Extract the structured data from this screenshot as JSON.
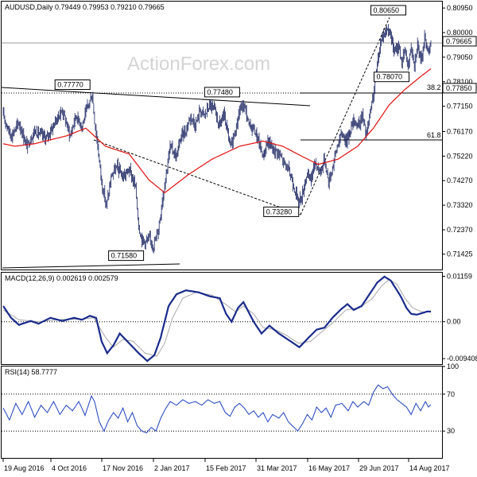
{
  "chart_data": [
    {
      "type": "candlestick",
      "symbol": "AUDUSD",
      "timeframe": "Daily",
      "header": "AUDUSD,Daily  0.79449 0.79953 0.79210 0.79665",
      "watermark": "ActionForex.com",
      "ylim": [
        0.708,
        0.812
      ],
      "y_ticks": [
        "0.80950",
        "0.80000",
        "0.79050",
        "0.78100",
        "0.77150",
        "0.76170",
        "0.75220",
        "0.74270",
        "0.73320",
        "0.72370",
        "0.71425"
      ],
      "current_price": "0.79665",
      "level_tag": "0.77850",
      "x_ticks": [
        "19 Aug 2016",
        "4 Oct 2016",
        "17 Nov 2016",
        "2 Jan 2017",
        "15 Feb 2017",
        "31 Mar 2017",
        "16 May 2017",
        "29 Jun 2017",
        "14 Aug 2017"
      ],
      "close_anchors": [
        [
          0,
          0.768
        ],
        [
          10,
          0.76
        ],
        [
          20,
          0.765
        ],
        [
          30,
          0.756
        ],
        [
          40,
          0.762
        ],
        [
          55,
          0.759
        ],
        [
          65,
          0.765
        ],
        [
          75,
          0.77
        ],
        [
          85,
          0.76
        ],
        [
          92,
          0.768
        ],
        [
          100,
          0.764
        ],
        [
          108,
          0.772
        ],
        [
          113,
          0.776
        ],
        [
          116,
          0.766
        ],
        [
          120,
          0.756
        ],
        [
          125,
          0.742
        ],
        [
          131,
          0.733
        ],
        [
          138,
          0.745
        ],
        [
          145,
          0.748
        ],
        [
          152,
          0.744
        ],
        [
          160,
          0.747
        ],
        [
          168,
          0.74
        ],
        [
          172,
          0.725
        ],
        [
          176,
          0.72
        ],
        [
          180,
          0.719
        ],
        [
          186,
          0.72
        ],
        [
          191,
          0.7175
        ],
        [
          197,
          0.724
        ],
        [
          201,
          0.733
        ],
        [
          206,
          0.744
        ],
        [
          212,
          0.756
        ],
        [
          220,
          0.752
        ],
        [
          226,
          0.76
        ],
        [
          232,
          0.762
        ],
        [
          238,
          0.768
        ],
        [
          244,
          0.764
        ],
        [
          250,
          0.77
        ],
        [
          256,
          0.768
        ],
        [
          262,
          0.772
        ],
        [
          268,
          0.77
        ],
        [
          274,
          0.764
        ],
        [
          280,
          0.768
        ],
        [
          288,
          0.756
        ],
        [
          295,
          0.762
        ],
        [
          300,
          0.77
        ],
        [
          306,
          0.772
        ],
        [
          312,
          0.764
        ],
        [
          318,
          0.763
        ],
        [
          324,
          0.758
        ],
        [
          330,
          0.752
        ],
        [
          336,
          0.758
        ],
        [
          342,
          0.755
        ],
        [
          348,
          0.754
        ],
        [
          356,
          0.75
        ],
        [
          362,
          0.747
        ],
        [
          368,
          0.742
        ],
        [
          374,
          0.735
        ],
        [
          379,
          0.736
        ],
        [
          385,
          0.745
        ],
        [
          390,
          0.743
        ],
        [
          396,
          0.75
        ],
        [
          402,
          0.746
        ],
        [
          408,
          0.751
        ],
        [
          413,
          0.742
        ],
        [
          418,
          0.748
        ],
        [
          424,
          0.756
        ],
        [
          430,
          0.761
        ],
        [
          436,
          0.758
        ],
        [
          441,
          0.763
        ],
        [
          446,
          0.766
        ],
        [
          451,
          0.764
        ],
        [
          456,
          0.768
        ],
        [
          461,
          0.76
        ],
        [
          467,
          0.77
        ],
        [
          472,
          0.78
        ],
        [
          477,
          0.792
        ],
        [
          481,
          0.799
        ],
        [
          485,
          0.8
        ],
        [
          489,
          0.802
        ],
        [
          493,
          0.797
        ],
        [
          497,
          0.792
        ],
        [
          502,
          0.795
        ],
        [
          506,
          0.788
        ],
        [
          510,
          0.793
        ],
        [
          514,
          0.787
        ],
        [
          518,
          0.795
        ],
        [
          522,
          0.788
        ],
        [
          526,
          0.796
        ],
        [
          530,
          0.788
        ],
        [
          535,
          0.798
        ],
        [
          539,
          0.793
        ],
        [
          543,
          0.7967
        ]
      ],
      "sma_anchors": [
        [
          0,
          0.757
        ],
        [
          15,
          0.756
        ],
        [
          40,
          0.757
        ],
        [
          80,
          0.76
        ],
        [
          105,
          0.763
        ],
        [
          130,
          0.756
        ],
        [
          160,
          0.753
        ],
        [
          185,
          0.743
        ],
        [
          205,
          0.738
        ],
        [
          235,
          0.745
        ],
        [
          265,
          0.751
        ],
        [
          300,
          0.756
        ],
        [
          330,
          0.758
        ],
        [
          355,
          0.756
        ],
        [
          380,
          0.752
        ],
        [
          400,
          0.749
        ],
        [
          425,
          0.751
        ],
        [
          450,
          0.756
        ],
        [
          470,
          0.763
        ],
        [
          490,
          0.772
        ],
        [
          510,
          0.778
        ],
        [
          530,
          0.783
        ],
        [
          543,
          0.786
        ]
      ],
      "annotations": [
        {
          "text": "0.80650",
          "price": 0.8065,
          "bar": 489
        },
        {
          "text": "0.77770",
          "price": 0.7777,
          "bar": 88
        },
        {
          "text": "0.77480",
          "price": 0.7748,
          "bar": 278
        },
        {
          "text": "0.78070",
          "price": 0.7807,
          "bar": 493
        },
        {
          "text": "0.73280",
          "price": 0.7328,
          "bar": 353
        },
        {
          "text": "0.71580",
          "price": 0.7158,
          "bar": 156
        }
      ],
      "levels": [
        {
          "text": "38.2",
          "price": 0.7785
        },
        {
          "text": "61.8",
          "price": 0.7622
        }
      ]
    },
    {
      "type": "line",
      "title": "MACD(12,26,9) 0.002619 0.002579",
      "ylim": [
        -0.011,
        0.0125
      ],
      "y_ticks": [
        "0.01159",
        "0.00",
        "-0.009408"
      ],
      "macd_anchors": [
        [
          0,
          0.004
        ],
        [
          10,
          0.001
        ],
        [
          20,
          -0.0008
        ],
        [
          35,
          0.0002
        ],
        [
          45,
          -0.0005
        ],
        [
          60,
          0.001
        ],
        [
          75,
          0.0002
        ],
        [
          90,
          0.001
        ],
        [
          100,
          0.0005
        ],
        [
          110,
          0.0015
        ],
        [
          118,
          0.001
        ],
        [
          125,
          -0.005
        ],
        [
          132,
          -0.008
        ],
        [
          140,
          -0.006
        ],
        [
          148,
          -0.003
        ],
        [
          160,
          -0.0055
        ],
        [
          172,
          -0.008
        ],
        [
          183,
          -0.01
        ],
        [
          192,
          -0.0085
        ],
        [
          200,
          -0.004
        ],
        [
          210,
          0.004
        ],
        [
          220,
          0.007
        ],
        [
          232,
          0.008
        ],
        [
          248,
          0.0075
        ],
        [
          262,
          0.0065
        ],
        [
          275,
          0.006
        ],
        [
          283,
          0.002
        ],
        [
          290,
          0.0
        ],
        [
          298,
          0.0035
        ],
        [
          305,
          0.005
        ],
        [
          318,
          0.0
        ],
        [
          328,
          -0.003
        ],
        [
          338,
          -0.001
        ],
        [
          350,
          -0.003
        ],
        [
          365,
          -0.005
        ],
        [
          376,
          -0.0065
        ],
        [
          388,
          -0.004
        ],
        [
          398,
          -0.002
        ],
        [
          408,
          -0.0015
        ],
        [
          418,
          0.001
        ],
        [
          428,
          0.003
        ],
        [
          437,
          0.0045
        ],
        [
          445,
          0.003
        ],
        [
          455,
          0.004
        ],
        [
          465,
          0.007
        ],
        [
          475,
          0.01
        ],
        [
          484,
          0.0115
        ],
        [
          492,
          0.0105
        ],
        [
          500,
          0.008
        ],
        [
          506,
          0.006
        ],
        [
          512,
          0.0035
        ],
        [
          518,
          0.002
        ],
        [
          525,
          0.0018
        ],
        [
          532,
          0.0022
        ],
        [
          538,
          0.0026
        ],
        [
          543,
          0.0026
        ]
      ],
      "signal_anchors": [
        [
          0,
          0.003
        ],
        [
          20,
          0.0005
        ],
        [
          45,
          0.0
        ],
        [
          75,
          0.0006
        ],
        [
          100,
          0.0007
        ],
        [
          115,
          0.001
        ],
        [
          130,
          -0.004
        ],
        [
          140,
          -0.0065
        ],
        [
          152,
          -0.0045
        ],
        [
          165,
          -0.005
        ],
        [
          180,
          -0.008
        ],
        [
          195,
          -0.0088
        ],
        [
          205,
          -0.0055
        ],
        [
          215,
          0.001
        ],
        [
          228,
          0.006
        ],
        [
          245,
          0.0075
        ],
        [
          265,
          0.0068
        ],
        [
          282,
          0.0045
        ],
        [
          295,
          0.0025
        ],
        [
          305,
          0.004
        ],
        [
          318,
          0.002
        ],
        [
          330,
          -0.0015
        ],
        [
          345,
          -0.002
        ],
        [
          360,
          -0.0035
        ],
        [
          375,
          -0.0055
        ],
        [
          390,
          -0.005
        ],
        [
          405,
          -0.0025
        ],
        [
          420,
          0.0
        ],
        [
          435,
          0.003
        ],
        [
          452,
          0.0035
        ],
        [
          468,
          0.0058
        ],
        [
          480,
          0.009
        ],
        [
          490,
          0.0108
        ],
        [
          500,
          0.0095
        ],
        [
          510,
          0.006
        ],
        [
          520,
          0.0035
        ],
        [
          532,
          0.0025
        ],
        [
          543,
          0.0026
        ]
      ]
    },
    {
      "type": "line",
      "title": "RSI(14) 58.7777",
      "ylim": [
        0,
        100
      ],
      "y_ticks": [
        "100",
        "70",
        "30",
        "0"
      ],
      "rsi_anchors": [
        [
          0,
          55
        ],
        [
          8,
          42
        ],
        [
          16,
          60
        ],
        [
          24,
          48
        ],
        [
          32,
          62
        ],
        [
          40,
          45
        ],
        [
          48,
          58
        ],
        [
          56,
          50
        ],
        [
          64,
          62
        ],
        [
          72,
          48
        ],
        [
          80,
          58
        ],
        [
          88,
          52
        ],
        [
          96,
          62
        ],
        [
          104,
          47
        ],
        [
          112,
          68
        ],
        [
          116,
          62
        ],
        [
          122,
          40
        ],
        [
          128,
          30
        ],
        [
          134,
          42
        ],
        [
          140,
          50
        ],
        [
          146,
          44
        ],
        [
          152,
          55
        ],
        [
          158,
          40
        ],
        [
          164,
          50
        ],
        [
          170,
          36
        ],
        [
          176,
          30
        ],
        [
          182,
          28
        ],
        [
          188,
          34
        ],
        [
          194,
          30
        ],
        [
          200,
          44
        ],
        [
          206,
          54
        ],
        [
          212,
          62
        ],
        [
          220,
          58
        ],
        [
          228,
          64
        ],
        [
          236,
          60
        ],
        [
          244,
          62
        ],
        [
          252,
          58
        ],
        [
          260,
          64
        ],
        [
          268,
          60
        ],
        [
          275,
          62
        ],
        [
          282,
          50
        ],
        [
          288,
          46
        ],
        [
          294,
          56
        ],
        [
          300,
          60
        ],
        [
          306,
          55
        ],
        [
          312,
          48
        ],
        [
          318,
          52
        ],
        [
          324,
          45
        ],
        [
          330,
          50
        ],
        [
          336,
          40
        ],
        [
          342,
          48
        ],
        [
          350,
          44
        ],
        [
          356,
          50
        ],
        [
          362,
          40
        ],
        [
          368,
          35
        ],
        [
          374,
          30
        ],
        [
          380,
          38
        ],
        [
          386,
          48
        ],
        [
          392,
          42
        ],
        [
          398,
          56
        ],
        [
          404,
          50
        ],
        [
          410,
          55
        ],
        [
          416,
          45
        ],
        [
          422,
          58
        ],
        [
          430,
          60
        ],
        [
          438,
          52
        ],
        [
          444,
          62
        ],
        [
          450,
          56
        ],
        [
          458,
          62
        ],
        [
          464,
          58
        ],
        [
          470,
          72
        ],
        [
          476,
          80
        ],
        [
          482,
          76
        ],
        [
          488,
          78
        ],
        [
          494,
          70
        ],
        [
          500,
          64
        ],
        [
          506,
          60
        ],
        [
          512,
          56
        ],
        [
          518,
          48
        ],
        [
          524,
          60
        ],
        [
          530,
          52
        ],
        [
          536,
          62
        ],
        [
          540,
          56
        ],
        [
          543,
          58.8
        ]
      ]
    }
  ]
}
